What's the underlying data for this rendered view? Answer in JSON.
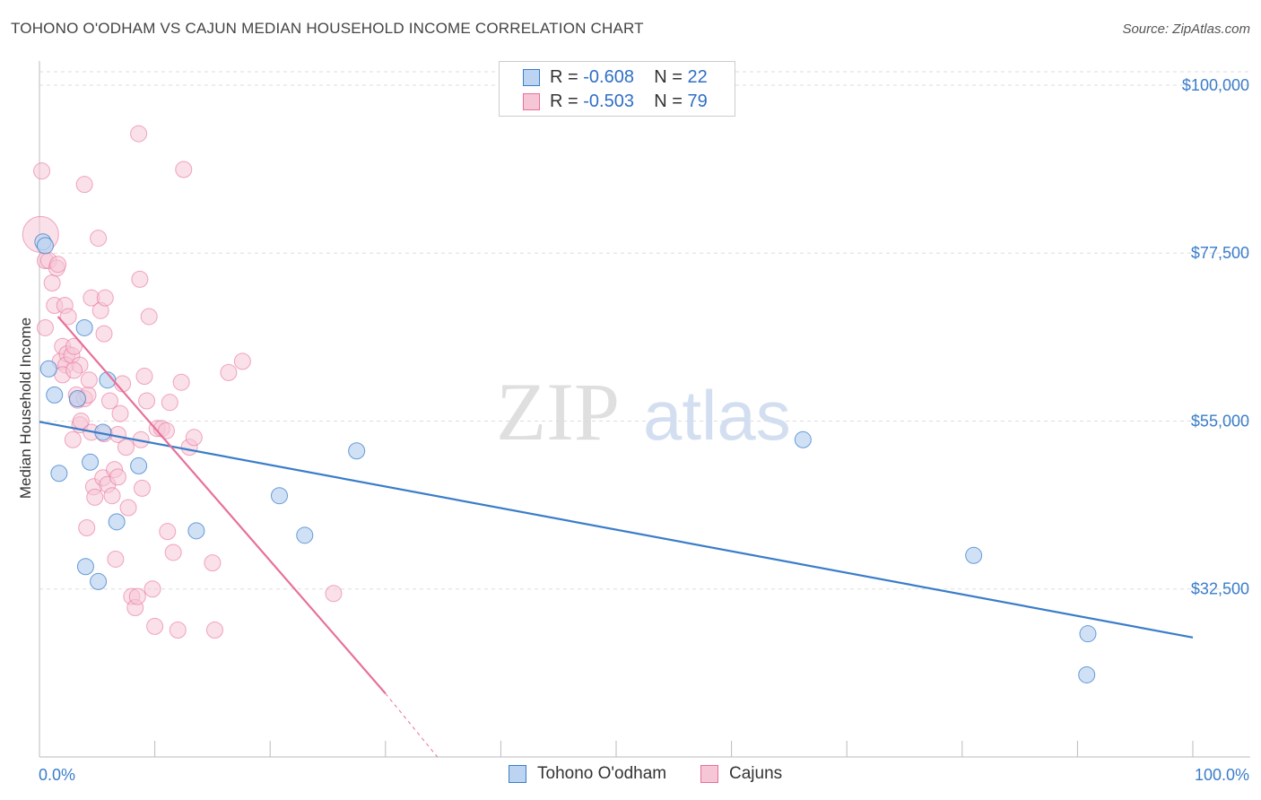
{
  "title": "TOHONO O'ODHAM VS CAJUN MEDIAN HOUSEHOLD INCOME CORRELATION CHART",
  "source": "Source: ZipAtlas.com",
  "legend": {
    "row1": {
      "r_label": "R = ",
      "r_value": "-0.608",
      "n_label": "N = ",
      "n_value": "22"
    },
    "row2": {
      "r_label": "R = ",
      "r_value": "-0.503",
      "n_label": "N = ",
      "n_value": "79"
    }
  },
  "bottom_legend": {
    "series1": "Tohono O'odham",
    "series2": "Cajuns"
  },
  "watermark": {
    "zip": "ZIP",
    "atlas": "atlas"
  },
  "colors": {
    "blue": "#3a7dc9",
    "blue_fill": "#bcd4f2",
    "pink": "#e8709a",
    "pink_fill": "#f6c6d6",
    "grid": "#dddddd"
  },
  "chart_data": {
    "type": "scatter",
    "title": "TOHONO O'ODHAM VS CAJUN MEDIAN HOUSEHOLD INCOME CORRELATION CHART",
    "xlabel": "",
    "ylabel": "Median Household Income",
    "xlim": [
      0,
      100
    ],
    "ylim": [
      10000,
      103000
    ],
    "x_tick_labels": [
      "0.0%",
      "100.0%"
    ],
    "y_ticks": [
      32500,
      55000,
      77500,
      100000
    ],
    "y_tick_labels": [
      "$32,500",
      "$55,000",
      "$77,500",
      "$100,000"
    ],
    "series": [
      {
        "name": "Tohono O'odham",
        "color": "#3a7dc9",
        "points": [
          [
            0.3,
            79000
          ],
          [
            0.8,
            62000
          ],
          [
            1.3,
            58500
          ],
          [
            1.7,
            48000
          ],
          [
            3.9,
            67500
          ],
          [
            4.4,
            49500
          ],
          [
            4.0,
            35500
          ],
          [
            5.1,
            33500
          ],
          [
            5.5,
            53500
          ],
          [
            5.9,
            60500
          ],
          [
            6.7,
            41500
          ],
          [
            8.6,
            49000
          ],
          [
            13.6,
            40300
          ],
          [
            20.8,
            45000
          ],
          [
            23.0,
            39700
          ],
          [
            27.5,
            51000
          ],
          [
            66.2,
            52500
          ],
          [
            81.0,
            37000
          ],
          [
            90.9,
            26500
          ],
          [
            90.8,
            21000
          ],
          [
            3.3,
            58000
          ],
          [
            0.5,
            78500
          ]
        ],
        "fit": {
          "x": [
            0,
            100
          ],
          "y": [
            54900,
            26000
          ]
        }
      },
      {
        "name": "Cajuns",
        "color": "#e8709a",
        "points": [
          [
            0.1,
            80000
          ],
          [
            0.2,
            88500
          ],
          [
            0.5,
            67500
          ],
          [
            0.5,
            76500
          ],
          [
            0.8,
            76500
          ],
          [
            1.1,
            73500
          ],
          [
            1.3,
            70500
          ],
          [
            1.5,
            75500
          ],
          [
            1.6,
            76000
          ],
          [
            1.8,
            63000
          ],
          [
            2.0,
            65000
          ],
          [
            2.2,
            70500
          ],
          [
            2.4,
            64000
          ],
          [
            2.3,
            62500
          ],
          [
            2.5,
            69000
          ],
          [
            2.8,
            63800
          ],
          [
            2.9,
            52500
          ],
          [
            3.0,
            65000
          ],
          [
            3.2,
            58500
          ],
          [
            3.3,
            57800
          ],
          [
            3.5,
            54500
          ],
          [
            3.6,
            55000
          ],
          [
            3.9,
            86700
          ],
          [
            3.9,
            58000
          ],
          [
            4.1,
            40700
          ],
          [
            4.2,
            58500
          ],
          [
            4.3,
            60500
          ],
          [
            4.5,
            53500
          ],
          [
            4.5,
            71500
          ],
          [
            4.7,
            46200
          ],
          [
            4.8,
            44800
          ],
          [
            5.1,
            79500
          ],
          [
            5.3,
            69800
          ],
          [
            5.5,
            47400
          ],
          [
            5.6,
            66700
          ],
          [
            5.7,
            71500
          ],
          [
            5.9,
            46500
          ],
          [
            6.1,
            57700
          ],
          [
            6.3,
            45000
          ],
          [
            6.5,
            48500
          ],
          [
            6.8,
            53200
          ],
          [
            6.8,
            47500
          ],
          [
            7.0,
            56000
          ],
          [
            7.2,
            60000
          ],
          [
            7.5,
            51500
          ],
          [
            7.7,
            43400
          ],
          [
            8.0,
            31500
          ],
          [
            8.3,
            30000
          ],
          [
            8.5,
            31500
          ],
          [
            8.6,
            93500
          ],
          [
            8.7,
            74000
          ],
          [
            8.8,
            52500
          ],
          [
            8.9,
            46000
          ],
          [
            9.1,
            61000
          ],
          [
            9.3,
            57700
          ],
          [
            9.5,
            69000
          ],
          [
            9.8,
            32500
          ],
          [
            10.0,
            27500
          ],
          [
            10.2,
            54000
          ],
          [
            10.6,
            54000
          ],
          [
            11.0,
            53700
          ],
          [
            11.1,
            40200
          ],
          [
            11.3,
            57500
          ],
          [
            11.6,
            37400
          ],
          [
            12.0,
            27000
          ],
          [
            12.3,
            60200
          ],
          [
            12.5,
            88700
          ],
          [
            13.0,
            51500
          ],
          [
            13.4,
            52800
          ],
          [
            15.0,
            36000
          ],
          [
            15.2,
            27000
          ],
          [
            16.4,
            61500
          ],
          [
            17.6,
            63000
          ],
          [
            25.5,
            31900
          ],
          [
            5.6,
            53300
          ],
          [
            6.6,
            36500
          ],
          [
            3.5,
            62500
          ],
          [
            2.0,
            61200
          ],
          [
            3.0,
            61800
          ]
        ],
        "fit": {
          "x": [
            1.6,
            30.0
          ],
          "y": [
            69000,
            18500
          ]
        },
        "fit_dashed": {
          "x": [
            30.0,
            34.5
          ],
          "y": [
            18500,
            10000
          ]
        }
      }
    ]
  }
}
